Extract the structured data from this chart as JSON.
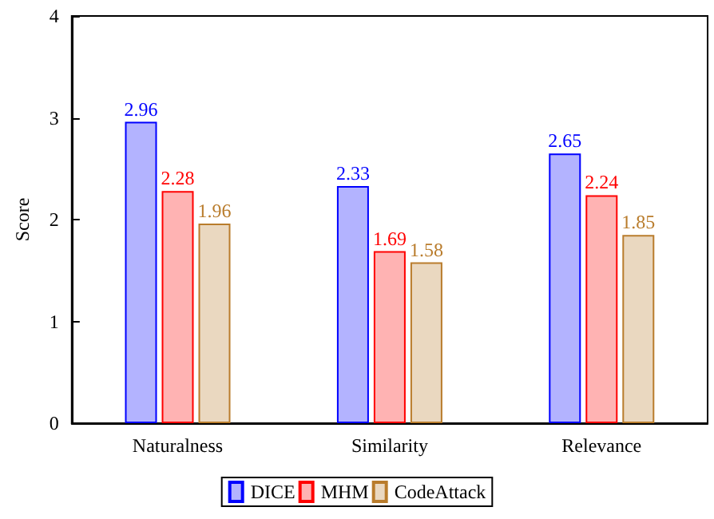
{
  "chart_data": {
    "type": "bar",
    "ylabel": "Score",
    "categories": [
      "Naturalness",
      "Similarity",
      "Relevance"
    ],
    "series": [
      {
        "name": "DICE",
        "color": "#b3b3ff",
        "values": [
          2.96,
          2.33,
          2.65
        ]
      },
      {
        "name": "MHM",
        "color": "#ffb3b3",
        "values": [
          2.28,
          1.69,
          2.24
        ]
      },
      {
        "name": "CodeAttack",
        "color": "#ead8c0",
        "values": [
          1.96,
          1.58,
          1.85
        ]
      }
    ],
    "ylim": [
      0,
      4
    ],
    "yticks": [
      0,
      1,
      2,
      3,
      4
    ],
    "grid": false,
    "legend": "bottom",
    "data_labels": true
  }
}
